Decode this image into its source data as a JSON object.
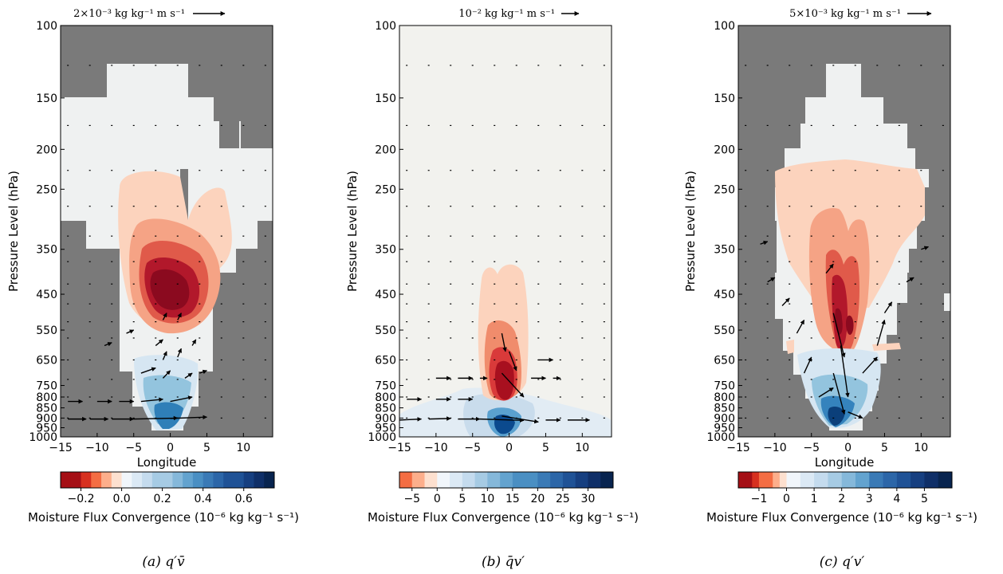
{
  "figure": {
    "background": "#ffffff",
    "missing_color": "#7a7a7a",
    "undefined_color": "#f2f2ee",
    "pressure_ticks": [
      "100",
      "150",
      "200",
      "250",
      "350",
      "450",
      "550",
      "650",
      "750",
      "800",
      "850",
      "900",
      "950",
      "1000"
    ],
    "longitude_ticks": [
      "−15",
      "−10",
      "−5",
      "0",
      "5",
      "10"
    ]
  },
  "chart_data": [
    {
      "type": "heatmap",
      "panel_caption": "(a) q′v̄",
      "quiver_key_label": "2×10⁻³ kg kg⁻¹ m s⁻¹",
      "xlabel": "Longitude",
      "ylabel": "Pressure Level (hPa)",
      "xlim": [
        -15,
        14
      ],
      "ylim": [
        1000,
        100
      ],
      "y_scale": "log",
      "colorbar": {
        "label": "Moisture Flux Convergence (10⁻⁶ kg kg⁻¹ s⁻¹)",
        "tick_labels": [
          "−0.2",
          "0.0",
          "0.2",
          "0.4",
          "0.6"
        ],
        "tick_values": [
          -0.2,
          0.0,
          0.2,
          0.4,
          0.6
        ],
        "levels": [
          -0.3,
          -0.25,
          -0.2,
          -0.15,
          -0.1,
          -0.05,
          0.0,
          0.05,
          0.1,
          0.15,
          0.2,
          0.25,
          0.3,
          0.35,
          0.4,
          0.45,
          0.5,
          0.55,
          0.6,
          0.65,
          0.7,
          0.75
        ]
      },
      "field": {
        "convergence_max": {
          "lon": 0,
          "pressure": 430,
          "value": -0.3
        },
        "divergence_max": {
          "lon": 0,
          "pressure": 910,
          "value": 0.35
        }
      }
    },
    {
      "type": "heatmap",
      "panel_caption": "(b) q̄v′",
      "quiver_key_label": "10⁻² kg kg⁻¹ m s⁻¹",
      "xlabel": "",
      "ylabel": "Pressure Level (hPa)",
      "xlim": [
        -15,
        14
      ],
      "ylim": [
        1000,
        100
      ],
      "y_scale": "log",
      "colorbar": {
        "label": "Moisture Flux Convergence (10⁻⁶ kg kg⁻¹ s⁻¹)",
        "tick_labels": [
          "−5",
          "0",
          "5",
          "10",
          "15",
          "20",
          "25",
          "30"
        ],
        "tick_values": [
          -5,
          0,
          5,
          10,
          15,
          20,
          25,
          30
        ],
        "levels": [
          -7.5,
          -5.0,
          -2.5,
          0,
          2.5,
          5,
          7.5,
          10,
          12.5,
          15,
          17.5,
          20,
          22.5,
          25,
          27.5,
          30,
          32.5,
          35
        ]
      },
      "field": {
        "convergence_max": {
          "lon": -0.5,
          "pressure": 760,
          "value": -7.5
        },
        "divergence_max": {
          "lon": 0,
          "pressure": 950,
          "value": 30
        }
      }
    },
    {
      "type": "heatmap",
      "panel_caption": "(c) q′v′",
      "quiver_key_label": "5×10⁻³ kg kg⁻¹ m s⁻¹",
      "xlabel": "Longitude",
      "ylabel": "Pressure Level (hPa)",
      "xlim": [
        -15,
        14
      ],
      "ylim": [
        1000,
        100
      ],
      "y_scale": "log",
      "colorbar": {
        "label": "Moisture Flux Convergence (10⁻⁶ kg kg⁻¹ s⁻¹)",
        "tick_labels": [
          "−1",
          "0",
          "1",
          "2",
          "3",
          "4",
          "5"
        ],
        "tick_values": [
          -1,
          0,
          1,
          2,
          3,
          4,
          5
        ],
        "levels": [
          -1.75,
          -1.5,
          -1.25,
          -1.0,
          -0.5,
          -0.25,
          0,
          0.5,
          1,
          1.5,
          2,
          2.5,
          3,
          3.5,
          4,
          4.5,
          5,
          5.5,
          6
        ]
      },
      "field": {
        "convergence_max": {
          "lon": -1,
          "pressure": 520,
          "value": -1.75
        },
        "divergence_max": {
          "lon": -1,
          "pressure": 910,
          "value": 5
        }
      }
    }
  ]
}
